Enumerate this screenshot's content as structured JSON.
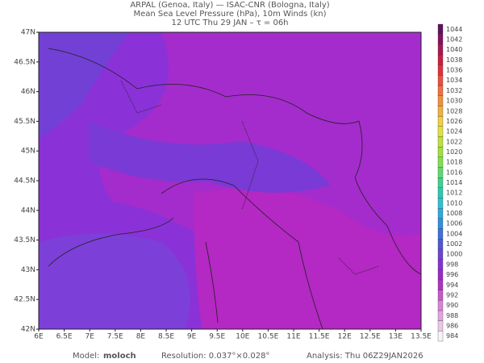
{
  "header": {
    "lines": [
      "ARPAL (Genoa, Italy)  —  ISAC-CNR (Bologna, Italy)",
      "Mean Sea Level Pressure (hPa), 10m Winds (kn)",
      "12 UTC Thu 29 JAN  –  τ = 06h"
    ]
  },
  "map": {
    "lon_labels": [
      "6E",
      "6.5E",
      "7E",
      "7.5E",
      "8E",
      "8.5E",
      "9E",
      "9.5E",
      "10E",
      "10.5E",
      "11E",
      "11.5E",
      "12E",
      "12.5E",
      "13E",
      "13.5E"
    ],
    "lat_labels": [
      "47N",
      "46.5N",
      "46N",
      "45.5N",
      "45N",
      "44.5N",
      "44N",
      "43.5N",
      "43N",
      "42.5N",
      "42N"
    ]
  },
  "colorbar": {
    "levels": [
      "984",
      "986",
      "988",
      "990",
      "992",
      "994",
      "996",
      "998",
      "1000",
      "1002",
      "1004",
      "1006",
      "1008",
      "1010",
      "1012",
      "1014",
      "1016",
      "1018",
      "1020",
      "1022",
      "1024",
      "1026",
      "1028",
      "1030",
      "1032",
      "1034",
      "1036",
      "1038",
      "1040",
      "1042",
      "1044"
    ],
    "colors": [
      "#f4f4f4",
      "#e8c8e6",
      "#e0a4dc",
      "#d884d4",
      "#c858c8",
      "#b232c0",
      "#9a2ac8",
      "#8234d0",
      "#6c46cc",
      "#5058d0",
      "#4070d8",
      "#3090e0",
      "#30a8e0",
      "#30c0d0",
      "#30c8b0",
      "#40d090",
      "#60d870",
      "#80e050",
      "#a0e040",
      "#c0e040",
      "#e0e040",
      "#f0d040",
      "#f0b040",
      "#f09040",
      "#f07040",
      "#e85040",
      "#e03040",
      "#c82040",
      "#a81850",
      "#881060",
      "#601060"
    ]
  },
  "footer": {
    "model_label": "Model:",
    "model": "moloch",
    "resolution": "Resolution: 0.037°×0.028°",
    "analysis": "Analysis: Thu 06Z29JAN2026"
  }
}
